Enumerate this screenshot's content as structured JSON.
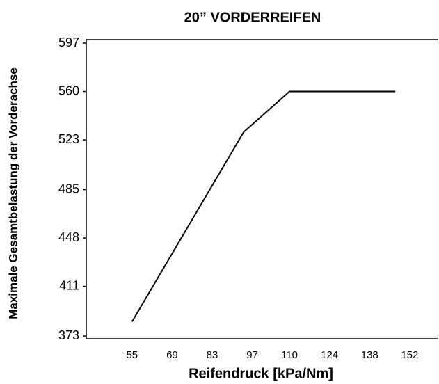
{
  "chart_data": {
    "type": "line",
    "title": "20” VORDERREIFEN",
    "x_label": "Reifendruck [kPa/Nm]",
    "y_label": "Maximale Gesamtbelastung der Vorderachse",
    "series": [
      {
        "color": "#000000",
        "x": [
          55,
          94,
          110,
          147
        ],
        "values": [
          384,
          529,
          560,
          560
        ]
      }
    ],
    "xlim": [
      39,
      162
    ],
    "xticks": [
      55,
      69,
      83,
      97,
      110,
      124,
      138,
      152
    ],
    "ylim": [
      373,
      597
    ],
    "yticks": [
      373,
      411,
      448,
      485,
      523,
      560,
      597
    ],
    "grid": false
  }
}
